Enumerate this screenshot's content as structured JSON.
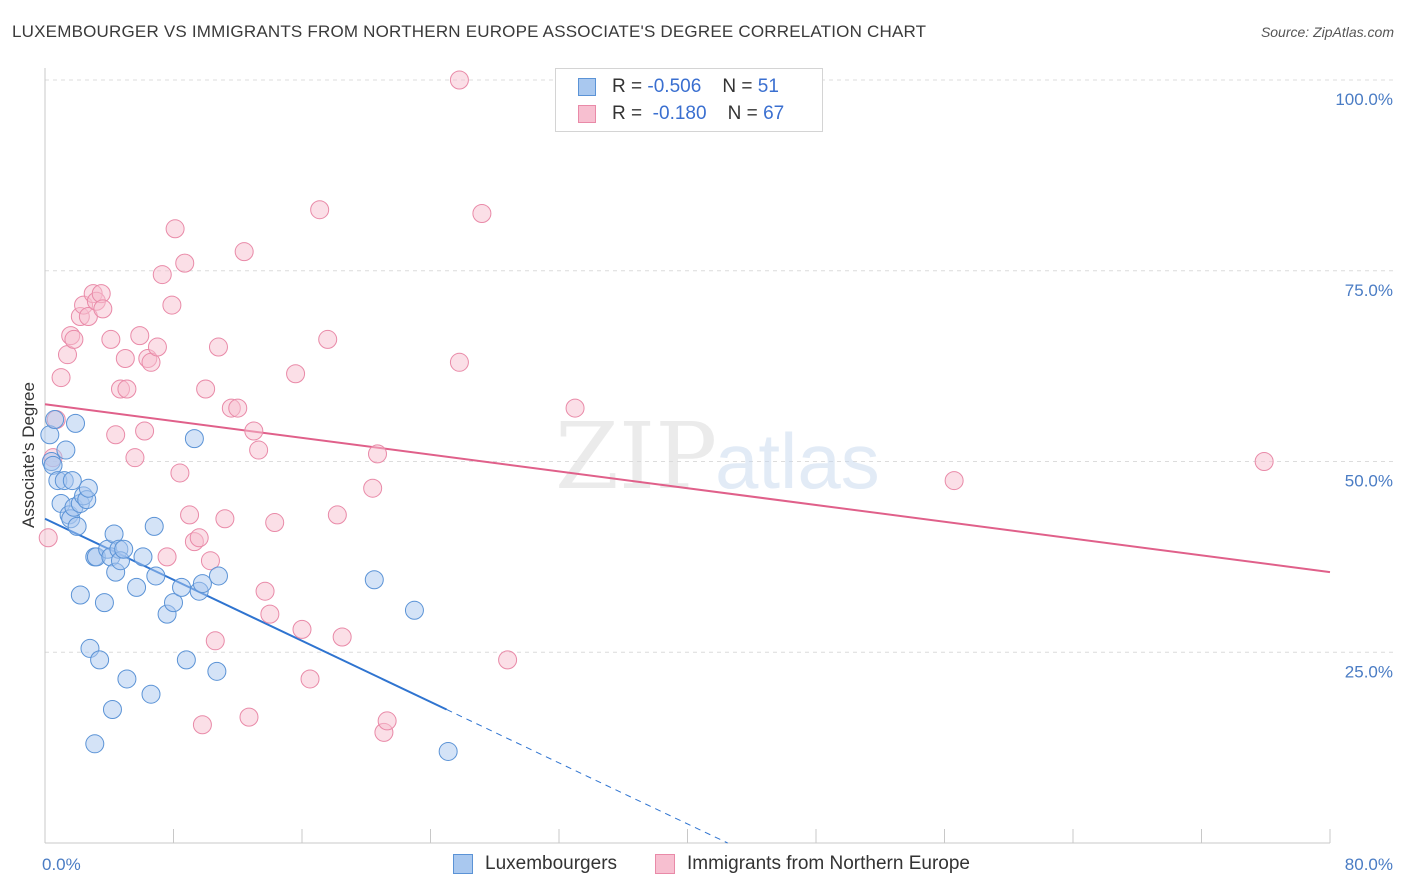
{
  "title": "LUXEMBOURGER VS IMMIGRANTS FROM NORTHERN EUROPE ASSOCIATE'S DEGREE CORRELATION CHART",
  "source": "Source: ZipAtlas.com",
  "watermark": {
    "zip": "ZIP",
    "atlas": "atlas"
  },
  "colors": {
    "blue_fill": "#a9c8ef",
    "blue_stroke": "#5b93d6",
    "blue_line": "#2f74d0",
    "pink_fill": "#f7bfd0",
    "pink_stroke": "#e98aa8",
    "pink_line": "#e0608a",
    "grid": "#dcdcdc",
    "tick_label": "#4a7cc4"
  },
  "legend": {
    "rows": [
      {
        "r_label": "R =",
        "r_value": "-0.506",
        "n_label": "N =",
        "n_value": "51",
        "series": "blue"
      },
      {
        "r_label": "R =",
        "r_value": "-0.180",
        "n_label": "N =",
        "n_value": "67",
        "series": "pink"
      }
    ]
  },
  "bottom_legend": [
    "Luxembourgers",
    "Immigrants from Northern Europe"
  ],
  "chart_data": {
    "type": "scatter",
    "title": "LUXEMBOURGER VS IMMIGRANTS FROM NORTHERN EUROPE ASSOCIATE'S DEGREE CORRELATION CHART",
    "xlabel": "",
    "ylabel": "Associate's Degree",
    "xlim": [
      0,
      80
    ],
    "ylim": [
      0,
      100
    ],
    "x_tick_labels": [
      "0.0%",
      "80.0%"
    ],
    "y_ticks": [
      25,
      50,
      75,
      100
    ],
    "y_tick_labels": [
      "25.0%",
      "50.0%",
      "75.0%",
      "100.0%"
    ],
    "legend_position": "top-center",
    "series": [
      {
        "name": "Luxembourgers",
        "color": "blue",
        "r": -0.506,
        "n": 51,
        "trend": {
          "x0": 0,
          "y0": 42.5,
          "x1": 25,
          "y1": 17.5,
          "dash_to_x": 42.5
        },
        "points": [
          [
            0.3,
            53.5
          ],
          [
            0.4,
            50
          ],
          [
            0.5,
            49.5
          ],
          [
            0.6,
            55.5
          ],
          [
            0.8,
            47.5
          ],
          [
            1.0,
            44.5
          ],
          [
            1.2,
            47.5
          ],
          [
            1.3,
            51.5
          ],
          [
            1.5,
            43
          ],
          [
            1.6,
            42.5
          ],
          [
            1.7,
            47.5
          ],
          [
            1.8,
            44
          ],
          [
            1.9,
            55
          ],
          [
            2.0,
            41.5
          ],
          [
            2.2,
            44.5
          ],
          [
            2.2,
            32.5
          ],
          [
            2.4,
            45.5
          ],
          [
            2.6,
            45
          ],
          [
            2.7,
            46.5
          ],
          [
            2.8,
            25.5
          ],
          [
            3.1,
            37.5
          ],
          [
            3.1,
            13
          ],
          [
            3.2,
            37.5
          ],
          [
            3.4,
            24
          ],
          [
            3.7,
            31.5
          ],
          [
            3.9,
            38.5
          ],
          [
            4.1,
            37.5
          ],
          [
            4.2,
            17.5
          ],
          [
            4.3,
            40.5
          ],
          [
            4.4,
            35.5
          ],
          [
            4.6,
            38.5
          ],
          [
            4.7,
            37
          ],
          [
            4.9,
            38.5
          ],
          [
            5.1,
            21.5
          ],
          [
            5.7,
            33.5
          ],
          [
            6.1,
            37.5
          ],
          [
            6.6,
            19.5
          ],
          [
            6.8,
            41.5
          ],
          [
            6.9,
            35
          ],
          [
            7.6,
            30
          ],
          [
            8.0,
            31.5
          ],
          [
            8.5,
            33.5
          ],
          [
            8.8,
            24
          ],
          [
            9.6,
            33
          ],
          [
            9.8,
            34
          ],
          [
            10.7,
            22.5
          ],
          [
            10.8,
            35
          ],
          [
            9.3,
            53
          ],
          [
            20.5,
            34.5
          ],
          [
            23.0,
            30.5
          ],
          [
            25.1,
            12
          ]
        ]
      },
      {
        "name": "Immigrants from Northern Europe",
        "color": "pink",
        "r": -0.18,
        "n": 67,
        "trend": {
          "x0": 0,
          "y0": 57.5,
          "x1": 80,
          "y1": 35.5
        },
        "points": [
          [
            0.2,
            40
          ],
          [
            0.5,
            50.5
          ],
          [
            0.7,
            55.5
          ],
          [
            1.0,
            61
          ],
          [
            1.4,
            64
          ],
          [
            1.6,
            66.5
          ],
          [
            1.8,
            66
          ],
          [
            2.2,
            69
          ],
          [
            2.4,
            70.5
          ],
          [
            2.7,
            69
          ],
          [
            3.0,
            72
          ],
          [
            3.2,
            71
          ],
          [
            3.5,
            72
          ],
          [
            3.6,
            70
          ],
          [
            4.1,
            66
          ],
          [
            4.4,
            53.5
          ],
          [
            4.7,
            59.5
          ],
          [
            5.0,
            63.5
          ],
          [
            5.1,
            59.5
          ],
          [
            5.6,
            50.5
          ],
          [
            5.9,
            66.5
          ],
          [
            6.2,
            54
          ],
          [
            6.4,
            63.5
          ],
          [
            6.6,
            63
          ],
          [
            7.0,
            65
          ],
          [
            7.3,
            74.5
          ],
          [
            7.6,
            37.5
          ],
          [
            7.9,
            70.5
          ],
          [
            8.1,
            80.5
          ],
          [
            8.4,
            48.5
          ],
          [
            8.7,
            76
          ],
          [
            9.0,
            43
          ],
          [
            9.3,
            39.5
          ],
          [
            9.6,
            40
          ],
          [
            9.8,
            15.5
          ],
          [
            10.0,
            59.5
          ],
          [
            10.3,
            37
          ],
          [
            10.6,
            26.5
          ],
          [
            10.8,
            65
          ],
          [
            11.2,
            42.5
          ],
          [
            11.6,
            57
          ],
          [
            12.0,
            57
          ],
          [
            12.4,
            77.5
          ],
          [
            12.7,
            16.5
          ],
          [
            13.0,
            54
          ],
          [
            13.3,
            51.5
          ],
          [
            13.7,
            33
          ],
          [
            14.0,
            30
          ],
          [
            14.3,
            42
          ],
          [
            15.6,
            61.5
          ],
          [
            16.0,
            28
          ],
          [
            16.5,
            21.5
          ],
          [
            17.1,
            83
          ],
          [
            17.6,
            66
          ],
          [
            18.2,
            43
          ],
          [
            18.5,
            27
          ],
          [
            20.4,
            46.5
          ],
          [
            20.7,
            51
          ],
          [
            21.1,
            14.5
          ],
          [
            21.3,
            16
          ],
          [
            25.8,
            100
          ],
          [
            25.8,
            63
          ],
          [
            27.2,
            82.5
          ],
          [
            28.8,
            24
          ],
          [
            33.0,
            57
          ],
          [
            56.6,
            47.5
          ],
          [
            75.9,
            50
          ]
        ]
      }
    ]
  }
}
